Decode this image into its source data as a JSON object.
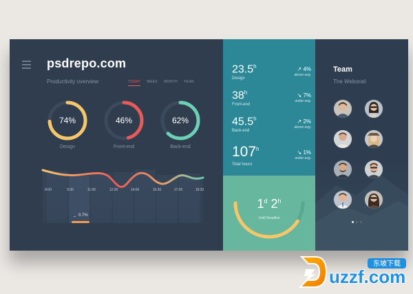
{
  "header": {
    "brand": "psdrepo.com",
    "subtitle": "Productivity overview",
    "ranges": [
      "TODAY",
      "WEEK",
      "MONTH",
      "YEAR"
    ],
    "active_range": "TODAY"
  },
  "rings": [
    {
      "label": "Design",
      "percent_text": "74%",
      "value": 74,
      "color": "#f6c66b"
    },
    {
      "label": "Front-end",
      "percent_text": "46%",
      "value": 46,
      "color": "#e85a58"
    },
    {
      "label": "Back-end",
      "percent_text": "62%",
      "value": 62,
      "color": "#6cd0b6"
    }
  ],
  "chart": {
    "x_ticks": [
      "8:00",
      "9:30",
      "11:00",
      "12:30",
      "14:00",
      "15:30",
      "17:00",
      "18:30"
    ],
    "annotation": "0.7%"
  },
  "stats": [
    {
      "value": "23.5",
      "unit": "h",
      "name": "Design",
      "change": "4%",
      "direction": "up",
      "compare": "above avg."
    },
    {
      "value": "38",
      "unit": "h",
      "name": "Front-end",
      "change": "7%",
      "direction": "down",
      "compare": "under avg."
    },
    {
      "value": "45.5",
      "unit": "h",
      "name": "Back-end",
      "change": "2%",
      "direction": "up",
      "compare": "above avg."
    },
    {
      "value": "107",
      "unit": "h",
      "name": "Total hours",
      "change": "1%",
      "direction": "down",
      "compare": "under avg."
    }
  ],
  "deadline": {
    "days": "1",
    "days_unit": "d",
    "hours": "2",
    "hours_unit": "h",
    "label": "Until Deadline",
    "progress": 0.82
  },
  "team": {
    "title": "Team",
    "subtitle": "The Weborati"
  },
  "pagination": {
    "count": 3,
    "active": 0
  },
  "watermark": "uzzf.com",
  "colors": {
    "panel_dark": "#2f3d4f",
    "panel_teal": "#2c8796",
    "panel_green": "#67b79e",
    "accent_red": "#e85a58",
    "accent_yellow": "#f6c66b",
    "accent_mint": "#6cd0b6"
  }
}
